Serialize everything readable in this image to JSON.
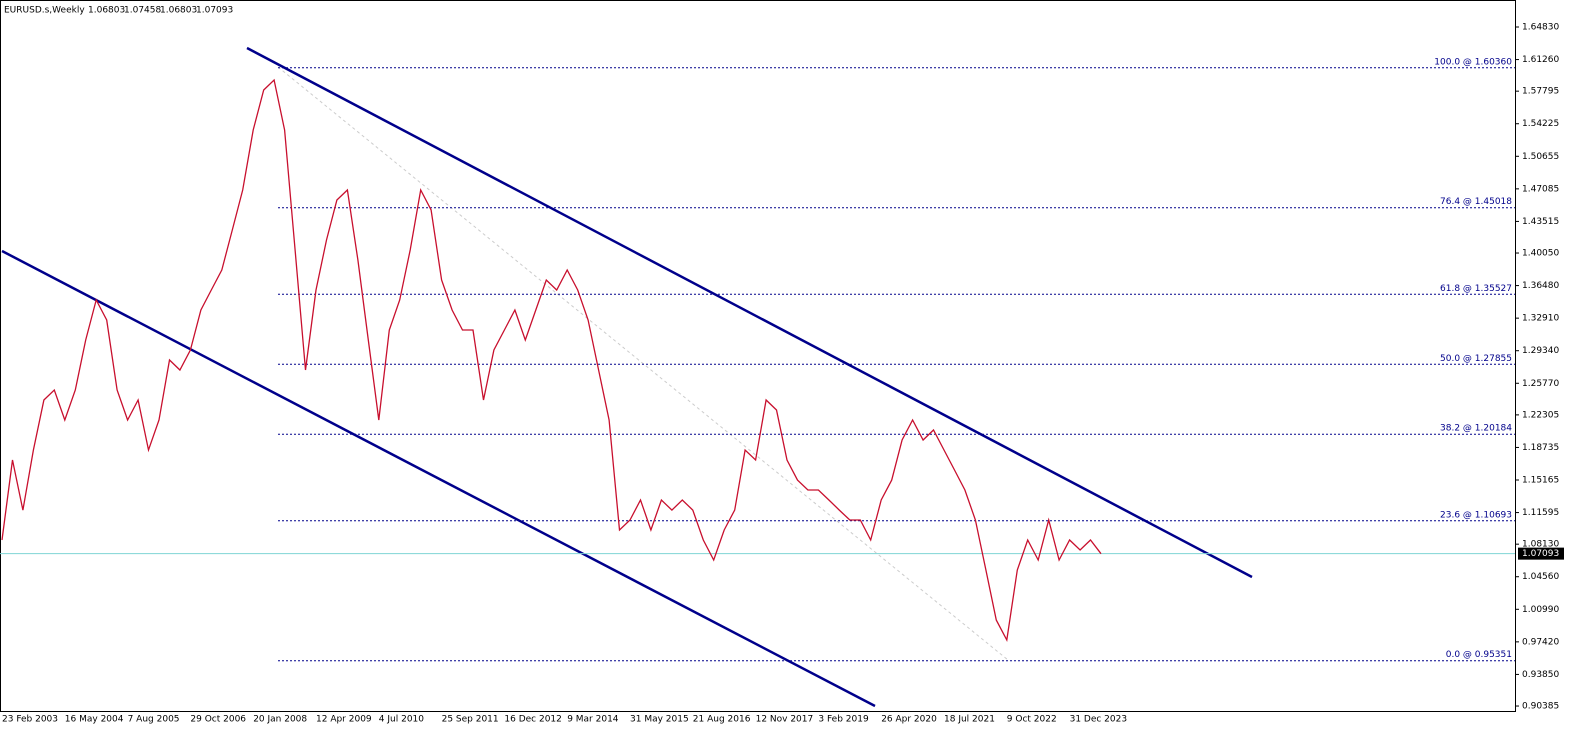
{
  "chart_data": {
    "type": "line",
    "title": "EURUSD.s,Weekly",
    "ohlc": [
      1.06803,
      1.07458,
      1.06803,
      1.07093
    ],
    "last_price": 1.07093,
    "categories": [
      "23 Feb 2003",
      null,
      null,
      null,
      null,
      null,
      "16 May 2004",
      null,
      null,
      null,
      null,
      null,
      "7 Aug 2005",
      null,
      null,
      null,
      null,
      null,
      "29 Oct 2006",
      null,
      null,
      null,
      null,
      null,
      "20 Jan 2008",
      null,
      null,
      null,
      null,
      null,
      "12 Apr 2009",
      null,
      null,
      null,
      null,
      null,
      "4 Jul 2010",
      null,
      null,
      null,
      null,
      null,
      "25 Sep 2011",
      null,
      null,
      null,
      null,
      null,
      "16 Dec 2012",
      null,
      null,
      null,
      null,
      null,
      "9 Mar 2014",
      null,
      null,
      null,
      null,
      null,
      "31 May 2015",
      null,
      null,
      null,
      null,
      null,
      "21 Aug 2016",
      null,
      null,
      null,
      null,
      null,
      "12 Nov 2017",
      null,
      null,
      null,
      null,
      null,
      "3 Feb 2019",
      null,
      null,
      null,
      null,
      null,
      "26 Apr 2020",
      null,
      null,
      null,
      null,
      null,
      "18 Jul 2021",
      null,
      null,
      null,
      null,
      null,
      "9 Oct 2022",
      null,
      null,
      null,
      null,
      null,
      "31 Dec 2023",
      null,
      null,
      null
    ],
    "series": [
      {
        "name": "EURUSD.s",
        "color": "#c8102e",
        "values": [
          1.0859,
          1.1736,
          1.1187,
          1.1845,
          1.2394,
          1.2503,
          1.2174,
          1.2503,
          1.3051,
          1.349,
          1.3271,
          1.2503,
          1.2174,
          1.2394,
          1.1845,
          1.2174,
          1.2832,
          1.2722,
          1.2942,
          1.338,
          1.36,
          1.3819,
          1.4257,
          1.4696,
          1.5354,
          1.5792,
          1.5902,
          1.5354,
          1.4038,
          1.2722,
          1.36,
          1.4148,
          1.4586,
          1.4696,
          1.3928,
          1.3051,
          1.2174,
          1.3161,
          1.349,
          1.4038,
          1.4696,
          1.4477,
          1.3709,
          1.338,
          1.3161,
          1.3161,
          1.2394,
          1.2942,
          1.3161,
          1.338,
          1.3051,
          1.338,
          1.3709,
          1.36,
          1.3819,
          1.36,
          1.3271,
          1.2722,
          1.2174,
          1.0968,
          1.1078,
          1.1297,
          1.0968,
          1.1297,
          1.1187,
          1.1297,
          1.1187,
          1.0859,
          1.0639,
          1.0968,
          1.1187,
          1.1845,
          1.1736,
          1.2394,
          1.2284,
          1.1736,
          1.1516,
          1.1407,
          1.1407,
          1.1297,
          1.1187,
          1.1078,
          1.1078,
          1.0859,
          1.1297,
          1.1516,
          1.1955,
          1.2174,
          1.1955,
          1.2065,
          1.1845,
          1.1626,
          1.1407,
          1.1078,
          1.053,
          0.9981,
          0.9762,
          1.053,
          1.0859,
          1.0639,
          1.1078,
          1.0639,
          1.0859,
          1.0749,
          1.0859,
          1.0709
        ]
      }
    ],
    "fib_levels": [
      {
        "label": "100.0 @ 1.60360",
        "value": 1.6036
      },
      {
        "label": "76.4 @ 1.45018",
        "value": 1.45018
      },
      {
        "label": "61.8 @ 1.35527",
        "value": 1.35527
      },
      {
        "label": "50.0 @ 1.27855",
        "value": 1.27855
      },
      {
        "label": "38.2 @ 1.20184",
        "value": 1.20184
      },
      {
        "label": "23.6 @ 1.10693",
        "value": 1.10693
      },
      {
        "label": "0.0 @ 0.95351",
        "value": 0.95351
      }
    ],
    "ylim": [
      0.8984,
      1.6779
    ],
    "yticks": [
      {
        "value": 1.6483,
        "label": "1.64830"
      },
      {
        "value": 1.6126,
        "label": "1.61260"
      },
      1.57795,
      1.54225,
      1.50655,
      1.47085,
      1.43515,
      {
        "value": 1.4005,
        "label": "1.40050"
      },
      {
        "value": 1.3648,
        "label": "1.36480"
      },
      {
        "value": 1.3291,
        "label": "1.32910"
      },
      {
        "value": 1.2934,
        "label": "1.29340"
      },
      {
        "value": 1.2577,
        "label": "1.25770"
      },
      1.22305,
      1.18735,
      1.15165,
      1.11595,
      {
        "value": 1.0813,
        "label": "1.08130"
      },
      {
        "value": 1.0456,
        "label": "1.04560"
      },
      {
        "value": 1.0099,
        "label": "1.00990"
      },
      {
        "value": 0.9742,
        "label": "0.97420"
      },
      {
        "value": 0.9385,
        "label": "0.93850"
      },
      0.90385
    ]
  }
}
